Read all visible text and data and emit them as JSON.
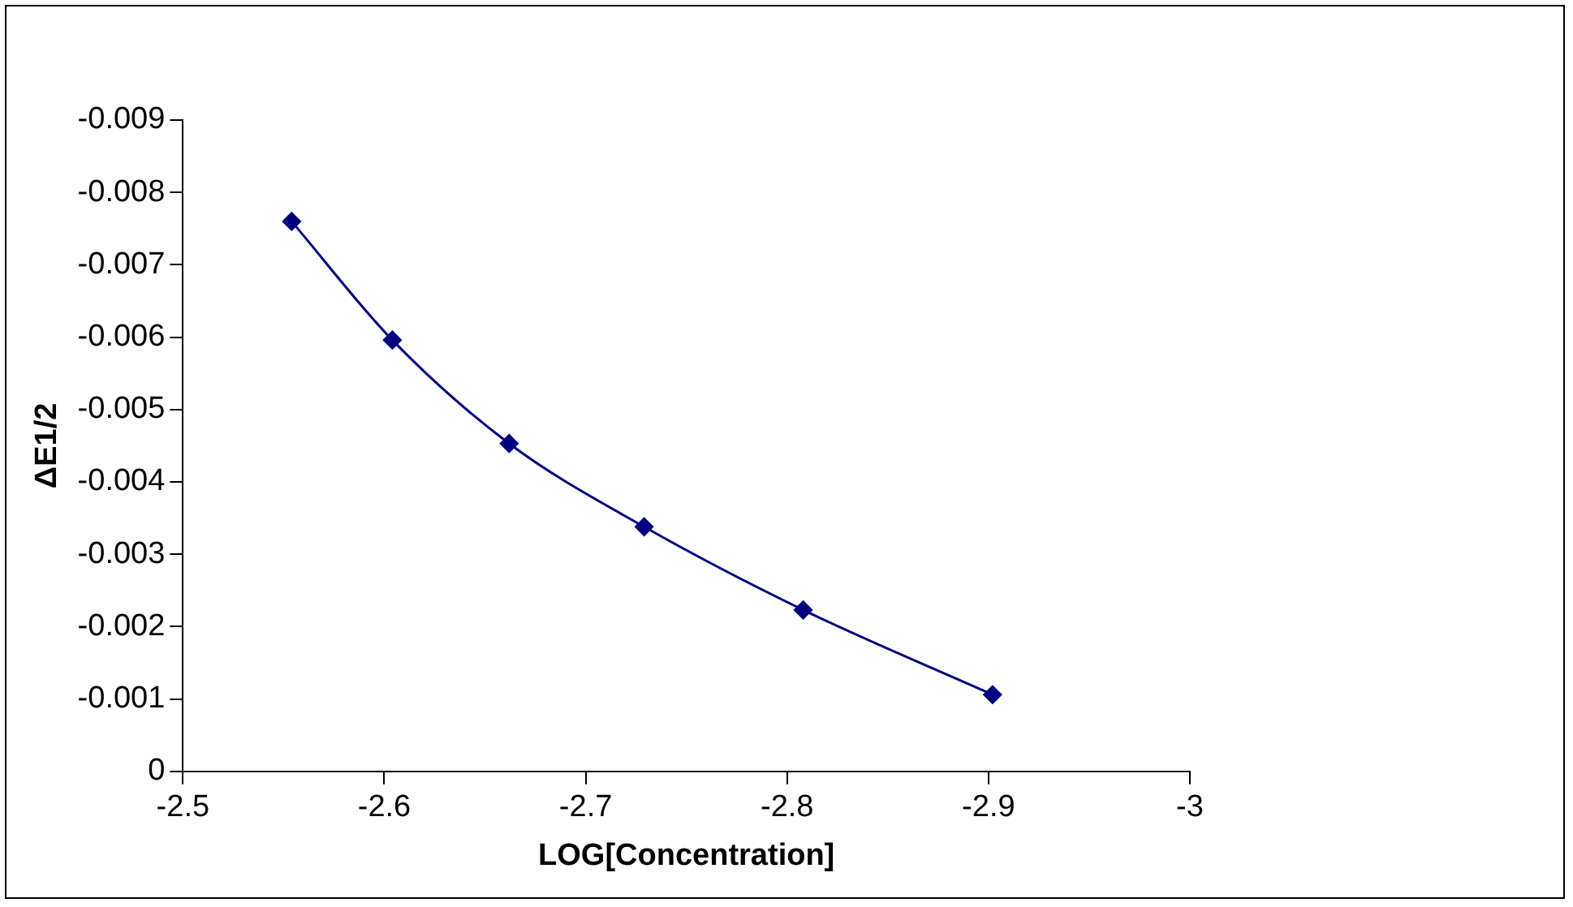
{
  "chart_data": {
    "type": "line",
    "xlabel": "LOG[Concentration]",
    "ylabel": "ΔE1/2",
    "x": [
      -2.554,
      -2.604,
      -2.662,
      -2.729,
      -2.808,
      -2.902
    ],
    "series": [
      {
        "color": "#000080",
        "values": [
          -0.0076,
          -0.00596,
          -0.00453,
          -0.00338,
          -0.00223,
          -0.00106
        ]
      }
    ],
    "xlim": [
      -2.5,
      -3
    ],
    "xticks": [
      -2.5,
      -2.6,
      -2.7,
      -2.8,
      -2.9,
      -3
    ],
    "ylim": [
      0,
      -0.009
    ],
    "yticks": [
      0,
      -0.001,
      -0.002,
      -0.003,
      -0.004,
      -0.005,
      -0.006,
      -0.007,
      -0.008,
      -0.009
    ],
    "grid": false,
    "legend": false,
    "marker": "diamond",
    "line_style": "solid"
  }
}
